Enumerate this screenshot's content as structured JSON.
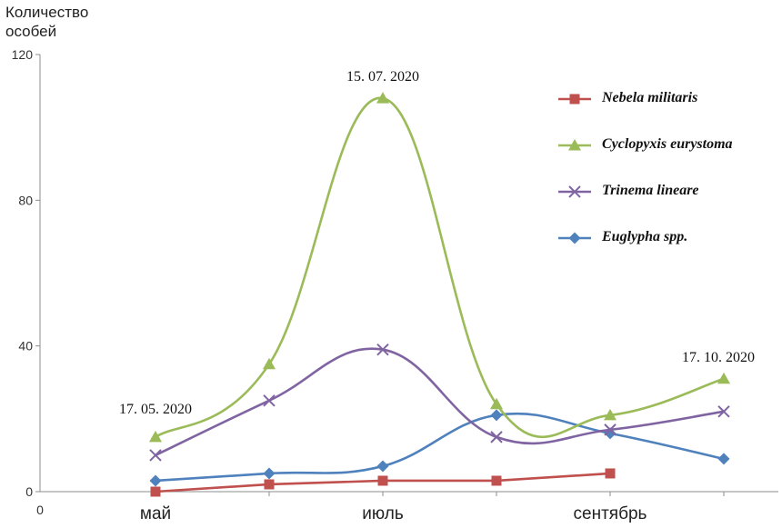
{
  "chart_data": {
    "type": "line",
    "ylabel": "Количество\nособей",
    "y_ticks": [
      "0",
      "40",
      "80",
      "120"
    ],
    "ylim": [
      0,
      120
    ],
    "x_origin_label": "0",
    "x_category_labels": [
      {
        "index": 0,
        "label": "май"
      },
      {
        "index": 2,
        "label": "июль"
      },
      {
        "index": 4,
        "label": "сентябрь"
      }
    ],
    "x_count": 6,
    "series": [
      {
        "name": "Nebela militaris",
        "color": "#c0504d",
        "marker": "square",
        "smooth": false,
        "values": [
          0,
          2,
          3,
          3,
          5,
          null
        ]
      },
      {
        "name": "Cyclopyxis eurystoma",
        "color": "#9bbb59",
        "marker": "triangle",
        "smooth": true,
        "values": [
          15,
          35,
          108,
          24,
          21,
          31
        ]
      },
      {
        "name": "Trinema lineare",
        "color": "#8064a2",
        "marker": "x",
        "smooth": true,
        "values": [
          10,
          25,
          39,
          15,
          17,
          22
        ]
      },
      {
        "name": "Euglypha spp.",
        "color": "#4f81bd",
        "marker": "diamond",
        "smooth": true,
        "values": [
          3,
          5,
          7,
          21,
          16,
          9
        ]
      }
    ],
    "annotations": [
      {
        "text": "17. 05. 2020",
        "index": 0
      },
      {
        "text": "15. 07. 2020",
        "index": 2
      },
      {
        "text": "17. 10. 2020",
        "index": 5
      }
    ],
    "legend_position": "top-right",
    "grid": false
  }
}
